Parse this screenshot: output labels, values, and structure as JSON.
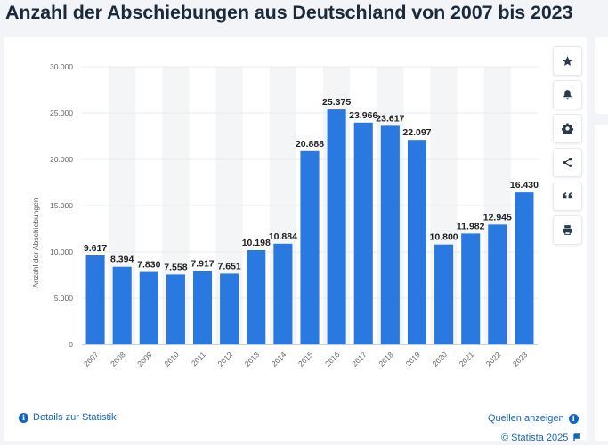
{
  "page": {
    "title": "Anzahl der Abschiebungen aus Deutschland von 2007 bis 2023"
  },
  "chart_data": {
    "type": "bar",
    "title": "Anzahl der Abschiebungen aus Deutschland von 2007 bis 2023",
    "xlabel": "",
    "ylabel": "Anzahl der Abschiebungen",
    "categories": [
      "2007",
      "2008",
      "2009",
      "2010",
      "2011",
      "2012",
      "2013",
      "2014",
      "2015",
      "2016",
      "2017",
      "2018",
      "2019",
      "2020",
      "2021",
      "2022",
      "2023"
    ],
    "values": [
      9617,
      8394,
      7830,
      7558,
      7917,
      7651,
      10198,
      10884,
      20888,
      25375,
      23966,
      23617,
      22097,
      10800,
      11982,
      12945,
      16430
    ],
    "value_labels": [
      "9.617",
      "8.394",
      "7.830",
      "7.558",
      "7.917",
      "7.651",
      "10.198",
      "10.884",
      "20.888",
      "25.375",
      "23.966",
      "23.617",
      "22.097",
      "10.800",
      "11.982",
      "12.945",
      "16.430"
    ],
    "ylim": [
      0,
      30000
    ],
    "yticks": [
      0,
      5000,
      10000,
      15000,
      20000,
      25000,
      30000
    ],
    "ytick_labels": [
      "0",
      "5.000",
      "10.000",
      "15.000",
      "20.000",
      "25.000",
      "30.000"
    ],
    "grid": true,
    "bar_color": "#2979e0"
  },
  "toolbar": {
    "buttons": [
      {
        "name": "star",
        "icon": "star-icon"
      },
      {
        "name": "bell",
        "icon": "bell-icon"
      },
      {
        "name": "settings",
        "icon": "gear-icon"
      },
      {
        "name": "share",
        "icon": "share-icon"
      },
      {
        "name": "cite",
        "icon": "quote-icon"
      },
      {
        "name": "print",
        "icon": "printer-icon"
      }
    ]
  },
  "footer": {
    "copyright": "© Statista 2025",
    "sources_link": "Quellen anzeigen",
    "details_link": "Details zur Statistik",
    "info_glyph": "i"
  },
  "colors": {
    "accent": "#1565c0",
    "bar": "#2979e0"
  }
}
